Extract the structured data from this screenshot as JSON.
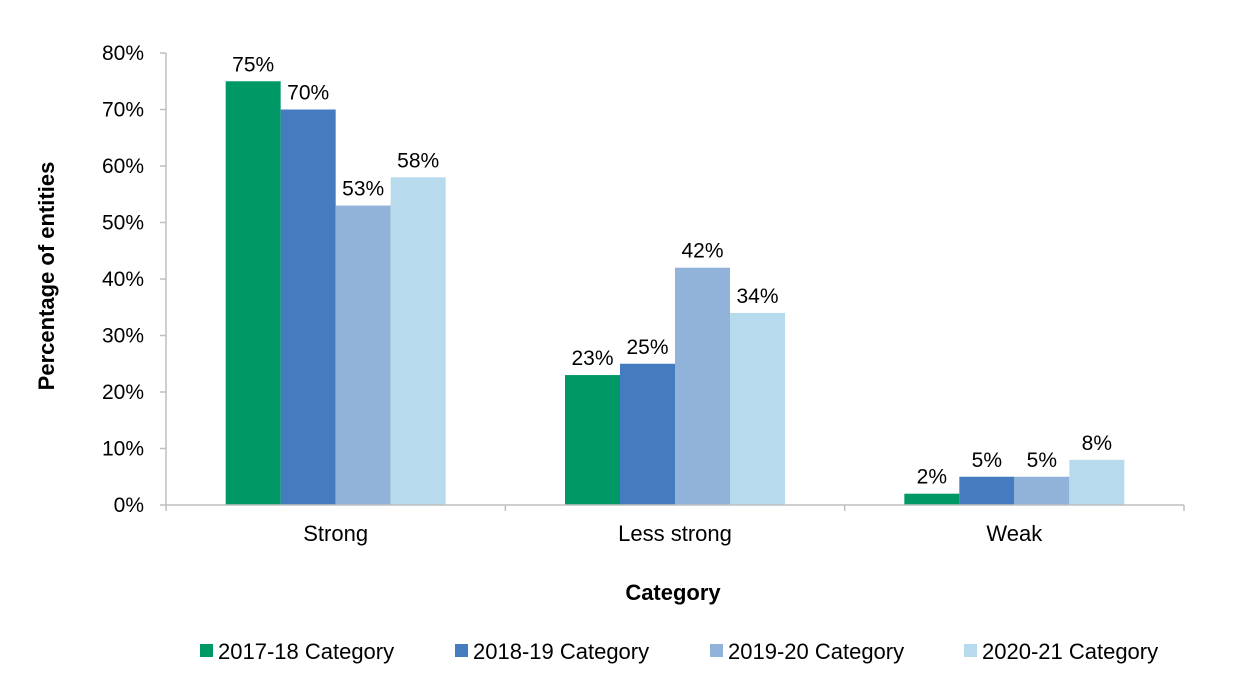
{
  "chart_data": {
    "type": "bar",
    "categories": [
      "Strong",
      "Less strong",
      "Weak"
    ],
    "series": [
      {
        "name": "2017-18 Category",
        "values": [
          75,
          23,
          2
        ],
        "color": "#009966"
      },
      {
        "name": "2018-19 Category",
        "values": [
          70,
          25,
          5
        ],
        "color": "#457BBF"
      },
      {
        "name": "2019-20 Category",
        "values": [
          53,
          42,
          5
        ],
        "color": "#91B3DA"
      },
      {
        "name": "2020-21 Category",
        "values": [
          58,
          34,
          8
        ],
        "color": "#B7DBEC"
      }
    ],
    "data_labels": [
      [
        "75%",
        "23%",
        "2%"
      ],
      [
        "70%",
        "25%",
        "5%"
      ],
      [
        "53%",
        "42%",
        "5%"
      ],
      [
        "58%",
        "34%",
        "8%"
      ]
    ],
    "y_ticks": [
      "0%",
      "10%",
      "20%",
      "30%",
      "40%",
      "50%",
      "60%",
      "70%",
      "80%"
    ],
    "ylim": [
      0,
      80
    ],
    "xlabel": "Category",
    "ylabel": "Percentage of entities",
    "grid": false,
    "legend_position": "bottom"
  }
}
